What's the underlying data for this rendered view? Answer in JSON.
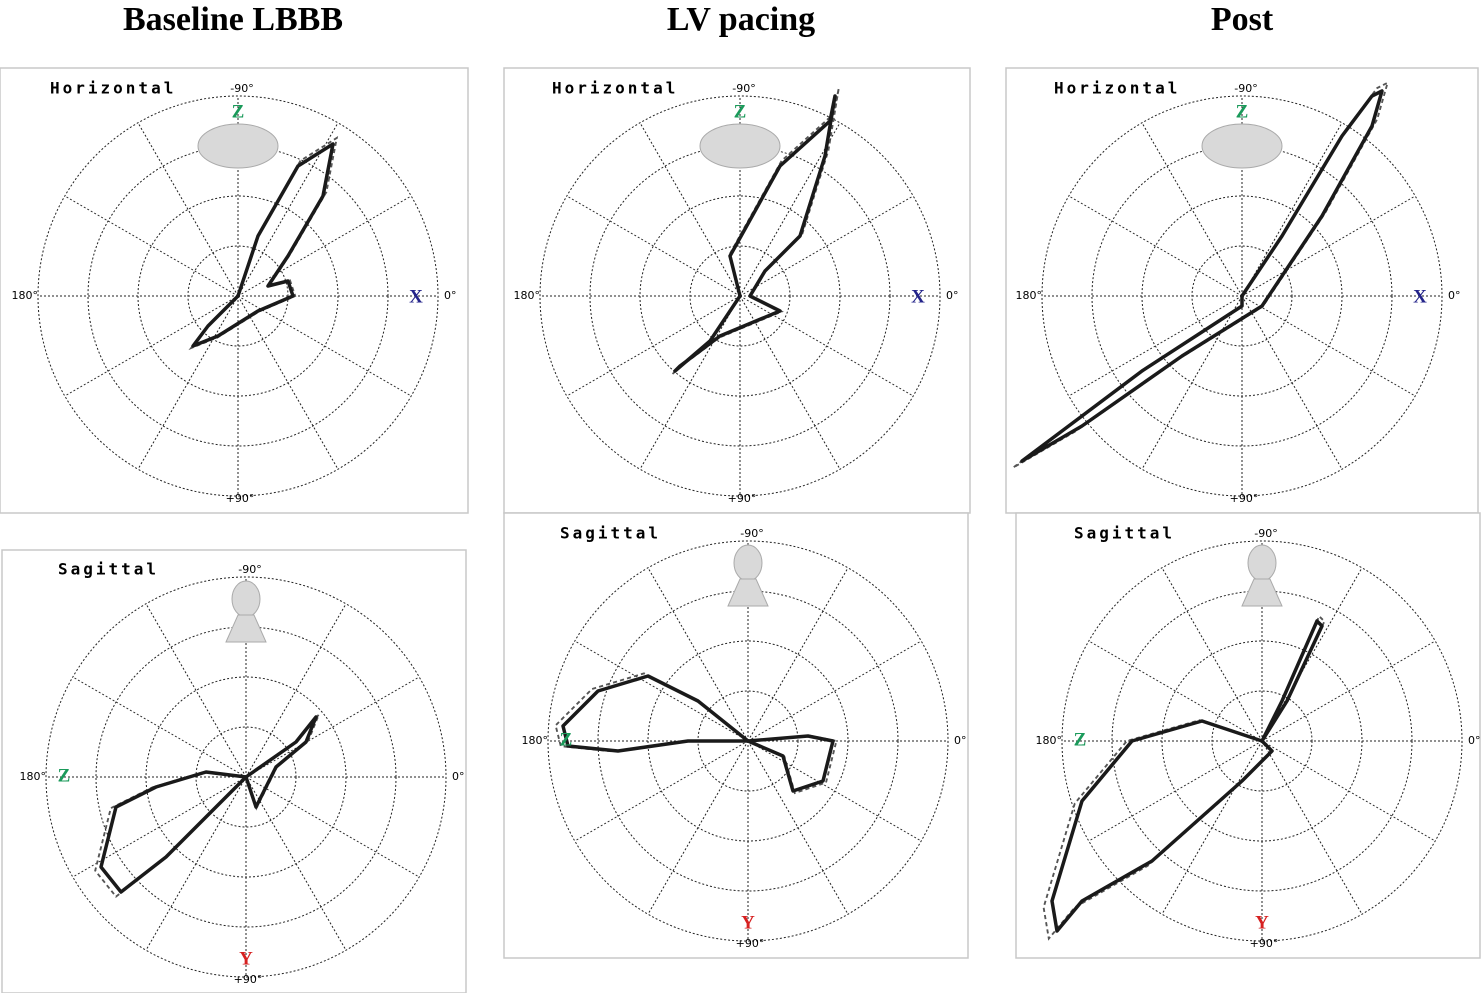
{
  "columns": [
    {
      "title": "Baseline LBBB",
      "panels": [
        {
          "plane": "Horizontal",
          "labels": {
            "top": "-90°",
            "right": "0°",
            "left": "180°",
            "bottom": "+90°"
          },
          "axes": {
            "top": "Z",
            "right": "X"
          }
        },
        {
          "plane": "Sagittal",
          "labels": {
            "top": "-90°",
            "right": "0°",
            "left": "180°",
            "bottom": "+90°"
          },
          "axes": {
            "left": "Z",
            "bottom": "Y"
          }
        }
      ]
    },
    {
      "title": "LV pacing",
      "panels": [
        {
          "plane": "Horizontal",
          "labels": {
            "top": "-90°",
            "right": "0°",
            "left": "180°",
            "bottom": "+90°"
          },
          "axes": {
            "top": "Z",
            "right": "X"
          }
        },
        {
          "plane": "Sagittal",
          "labels": {
            "top": "-90°",
            "right": "0°",
            "left": "180°",
            "bottom": "+90°"
          },
          "axes": {
            "left": "Z",
            "bottom": "Y"
          }
        }
      ]
    },
    {
      "title": "Post",
      "panels": [
        {
          "plane": "Horizontal",
          "labels": {
            "top": "-90°",
            "right": "0°",
            "left": "180°",
            "bottom": "+90°"
          },
          "axes": {
            "top": "Z",
            "right": "X"
          }
        },
        {
          "plane": "Sagittal",
          "labels": {
            "top": "-90°",
            "right": "0°",
            "left": "180°",
            "bottom": "+90°"
          },
          "axes": {
            "left": "Z",
            "bottom": "Y"
          }
        }
      ]
    }
  ]
}
